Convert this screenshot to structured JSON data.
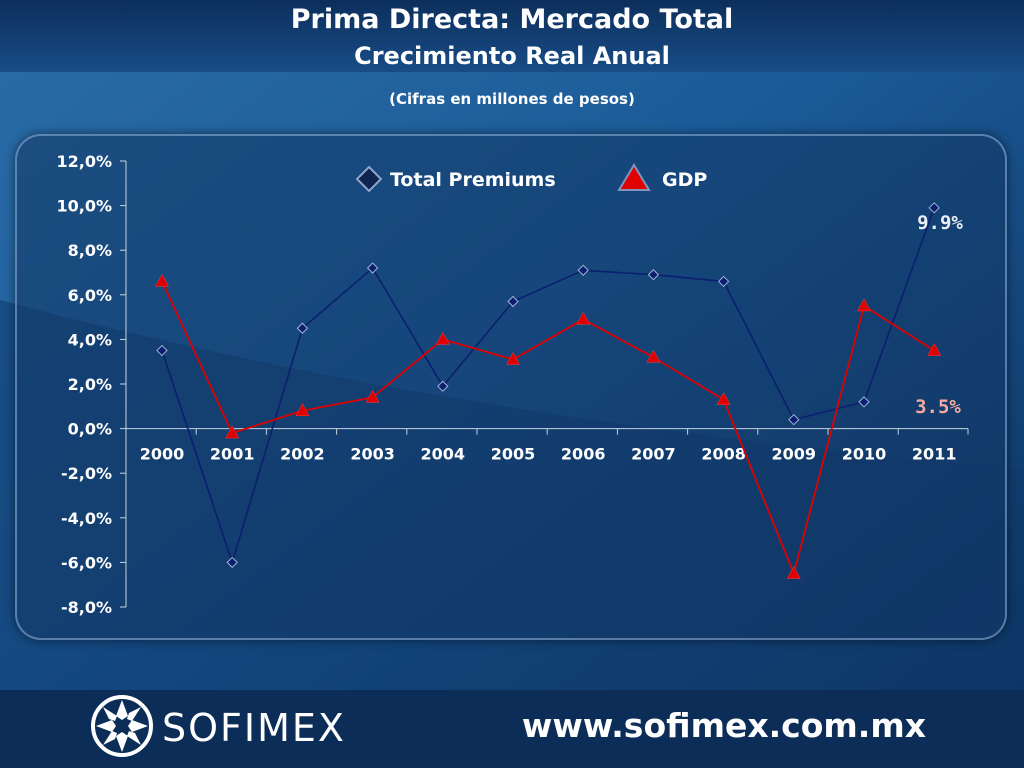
{
  "header": {
    "title": "Prima Directa: Mercado Total",
    "subtitle": "Crecimiento Real Anual",
    "note": "(Cifras en millones de pesos)"
  },
  "footer": {
    "brand": "SOFIMEX",
    "url": "www.sofimex.com.mx"
  },
  "colors": {
    "premiums": "#0b1f6e",
    "gdp": "#e00000",
    "label_premiums": "#e9eef5",
    "label_gdp": "#f4a9a0"
  },
  "chart_data": {
    "type": "line",
    "categories": [
      "2000",
      "2001",
      "2002",
      "2003",
      "2004",
      "2005",
      "2006",
      "2007",
      "2008",
      "2009",
      "2010",
      "2011"
    ],
    "ylim": [
      -8,
      12
    ],
    "yticks": [
      "12,0%",
      "10,0%",
      "8,0%",
      "6,0%",
      "4,0%",
      "2,0%",
      "0,0%",
      "-2,0%",
      "-4,0%",
      "-6,0%",
      "-8,0%"
    ],
    "ytick_values": [
      12,
      10,
      8,
      6,
      4,
      2,
      0,
      -2,
      -4,
      -6,
      -8
    ],
    "legend_position": "top",
    "series": [
      {
        "name": "Total Premiums",
        "marker": "diamond",
        "values": [
          3.5,
          -6.0,
          4.5,
          7.2,
          1.9,
          5.7,
          7.1,
          6.9,
          6.6,
          0.4,
          1.2,
          9.9
        ]
      },
      {
        "name": "GDP",
        "marker": "triangle",
        "values": [
          6.6,
          -0.2,
          0.8,
          1.4,
          4.0,
          3.1,
          4.9,
          3.2,
          1.3,
          -6.5,
          5.5,
          3.5
        ]
      }
    ],
    "annotations": [
      {
        "text": "9.9%",
        "series": 0
      },
      {
        "text": "3.5%",
        "series": 1
      }
    ]
  }
}
